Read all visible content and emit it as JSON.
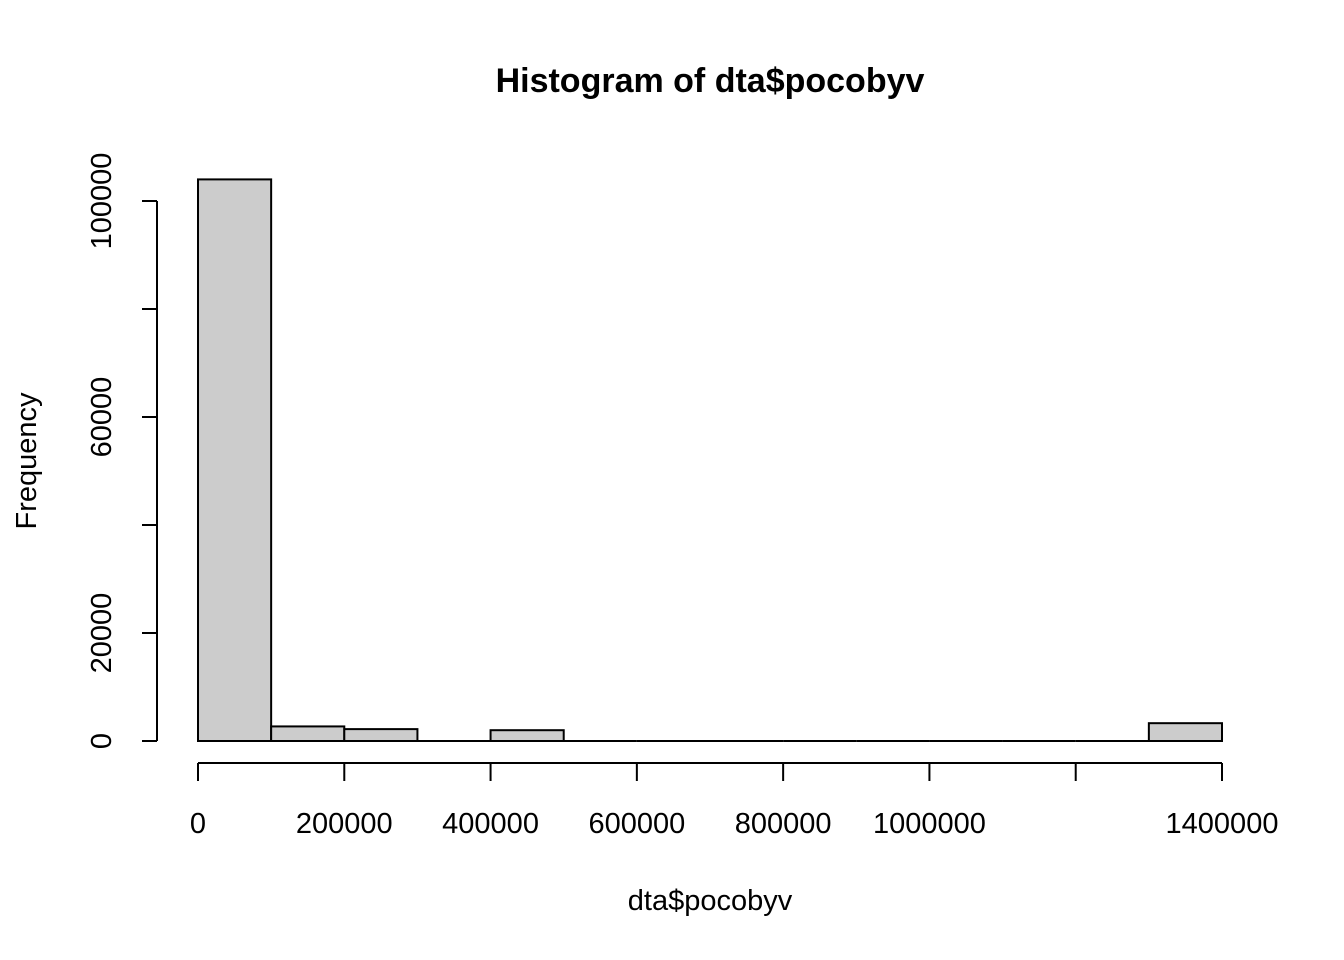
{
  "chart_data": {
    "type": "bar",
    "title": "Histogram of dta$pocobyv",
    "xlabel": "dta$pocobyv",
    "ylabel": "Frequency",
    "xlim": [
      0,
      1400000
    ],
    "ylim": [
      0,
      104000
    ],
    "bin_width": 100000,
    "bins": [
      {
        "start": 0,
        "end": 100000,
        "count": 104000
      },
      {
        "start": 100000,
        "end": 200000,
        "count": 2700
      },
      {
        "start": 200000,
        "end": 300000,
        "count": 2200
      },
      {
        "start": 300000,
        "end": 400000,
        "count": 0
      },
      {
        "start": 400000,
        "end": 500000,
        "count": 2000
      },
      {
        "start": 500000,
        "end": 600000,
        "count": 0
      },
      {
        "start": 600000,
        "end": 700000,
        "count": 0
      },
      {
        "start": 700000,
        "end": 800000,
        "count": 0
      },
      {
        "start": 800000,
        "end": 900000,
        "count": 0
      },
      {
        "start": 900000,
        "end": 1000000,
        "count": 0
      },
      {
        "start": 1000000,
        "end": 1100000,
        "count": 0
      },
      {
        "start": 1100000,
        "end": 1200000,
        "count": 0
      },
      {
        "start": 1200000,
        "end": 1300000,
        "count": 0
      },
      {
        "start": 1300000,
        "end": 1400000,
        "count": 3300
      }
    ],
    "x_ticks": [
      0,
      200000,
      400000,
      600000,
      800000,
      1000000,
      1200000,
      1400000
    ],
    "x_tick_labels": [
      "0",
      "200000",
      "400000",
      "600000",
      "800000",
      "1000000",
      "",
      "1400000"
    ],
    "y_ticks": [
      0,
      20000,
      40000,
      60000,
      80000,
      100000
    ],
    "y_tick_labels": [
      "0",
      "20000",
      "",
      "60000",
      "",
      "100000"
    ],
    "bar_fill": "#cccccc",
    "bar_stroke": "#000000",
    "grid": false,
    "legend": "none"
  }
}
